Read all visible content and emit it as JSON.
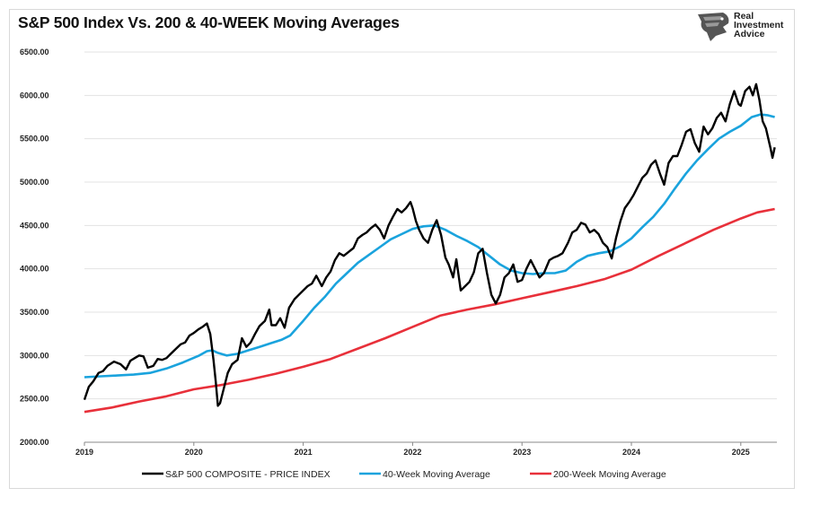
{
  "title": "S&P 500 Index Vs. 200 & 40-WEEK Moving Averages",
  "logo": {
    "line1": "Real",
    "line2": "Investment",
    "line3": "Advice",
    "icon": "eagle-head-icon"
  },
  "colors": {
    "price": "#000000",
    "ma40": "#1aa3dd",
    "ma200": "#e8303a",
    "grid": "#e3e3e3",
    "axis": "#888888"
  },
  "chart_data": {
    "type": "line",
    "title": "S&P 500 Index Vs. 200 & 40-WEEK Moving Averages",
    "xlabel": "",
    "ylabel": "",
    "ylim": [
      2000,
      6500
    ],
    "xlim": [
      2019.0,
      2025.33
    ],
    "grid": true,
    "legend_position": "bottom",
    "y_ticks": [
      "2000.00",
      "2500.00",
      "3000.00",
      "3500.00",
      "4000.00",
      "4500.00",
      "5000.00",
      "5500.00",
      "6000.00",
      "6500.00"
    ],
    "x_ticks": [
      "2019",
      "2020",
      "2021",
      "2022",
      "2023",
      "2024",
      "2025"
    ],
    "series": [
      {
        "name": "S&P 500 COMPOSITE - PRICE INDEX",
        "color": "#000000",
        "points": [
          [
            2019.0,
            2490
          ],
          [
            2019.04,
            2640
          ],
          [
            2019.08,
            2700
          ],
          [
            2019.13,
            2800
          ],
          [
            2019.17,
            2820
          ],
          [
            2019.21,
            2880
          ],
          [
            2019.27,
            2930
          ],
          [
            2019.33,
            2900
          ],
          [
            2019.38,
            2840
          ],
          [
            2019.42,
            2940
          ],
          [
            2019.46,
            2970
          ],
          [
            2019.5,
            3000
          ],
          [
            2019.54,
            2990
          ],
          [
            2019.58,
            2860
          ],
          [
            2019.63,
            2880
          ],
          [
            2019.67,
            2960
          ],
          [
            2019.71,
            2950
          ],
          [
            2019.75,
            2970
          ],
          [
            2019.79,
            3020
          ],
          [
            2019.83,
            3070
          ],
          [
            2019.88,
            3130
          ],
          [
            2019.92,
            3150
          ],
          [
            2019.96,
            3230
          ],
          [
            2020.0,
            3260
          ],
          [
            2020.04,
            3300
          ],
          [
            2020.08,
            3330
          ],
          [
            2020.12,
            3370
          ],
          [
            2020.15,
            3250
          ],
          [
            2020.18,
            2950
          ],
          [
            2020.2,
            2700
          ],
          [
            2020.22,
            2420
          ],
          [
            2020.24,
            2450
          ],
          [
            2020.27,
            2600
          ],
          [
            2020.31,
            2800
          ],
          [
            2020.35,
            2900
          ],
          [
            2020.4,
            2950
          ],
          [
            2020.44,
            3200
          ],
          [
            2020.48,
            3100
          ],
          [
            2020.52,
            3150
          ],
          [
            2020.56,
            3250
          ],
          [
            2020.6,
            3340
          ],
          [
            2020.65,
            3400
          ],
          [
            2020.69,
            3530
          ],
          [
            2020.71,
            3350
          ],
          [
            2020.75,
            3350
          ],
          [
            2020.79,
            3430
          ],
          [
            2020.83,
            3320
          ],
          [
            2020.87,
            3550
          ],
          [
            2020.92,
            3650
          ],
          [
            2020.96,
            3700
          ],
          [
            2021.0,
            3750
          ],
          [
            2021.04,
            3800
          ],
          [
            2021.08,
            3830
          ],
          [
            2021.12,
            3920
          ],
          [
            2021.17,
            3800
          ],
          [
            2021.21,
            3900
          ],
          [
            2021.25,
            3970
          ],
          [
            2021.29,
            4100
          ],
          [
            2021.33,
            4180
          ],
          [
            2021.37,
            4150
          ],
          [
            2021.42,
            4200
          ],
          [
            2021.46,
            4240
          ],
          [
            2021.5,
            4350
          ],
          [
            2021.54,
            4390
          ],
          [
            2021.58,
            4420
          ],
          [
            2021.62,
            4470
          ],
          [
            2021.66,
            4510
          ],
          [
            2021.7,
            4450
          ],
          [
            2021.74,
            4350
          ],
          [
            2021.78,
            4500
          ],
          [
            2021.82,
            4600
          ],
          [
            2021.86,
            4690
          ],
          [
            2021.9,
            4650
          ],
          [
            2021.94,
            4700
          ],
          [
            2021.98,
            4770
          ],
          [
            2022.0,
            4700
          ],
          [
            2022.03,
            4550
          ],
          [
            2022.06,
            4450
          ],
          [
            2022.1,
            4350
          ],
          [
            2022.14,
            4300
          ],
          [
            2022.18,
            4450
          ],
          [
            2022.22,
            4560
          ],
          [
            2022.26,
            4390
          ],
          [
            2022.3,
            4130
          ],
          [
            2022.33,
            4050
          ],
          [
            2022.37,
            3900
          ],
          [
            2022.4,
            4110
          ],
          [
            2022.44,
            3750
          ],
          [
            2022.48,
            3800
          ],
          [
            2022.52,
            3850
          ],
          [
            2022.56,
            3960
          ],
          [
            2022.6,
            4180
          ],
          [
            2022.64,
            4230
          ],
          [
            2022.68,
            3950
          ],
          [
            2022.72,
            3700
          ],
          [
            2022.76,
            3600
          ],
          [
            2022.8,
            3700
          ],
          [
            2022.84,
            3900
          ],
          [
            2022.88,
            3950
          ],
          [
            2022.92,
            4050
          ],
          [
            2022.96,
            3850
          ],
          [
            2023.0,
            3870
          ],
          [
            2023.04,
            4000
          ],
          [
            2023.08,
            4100
          ],
          [
            2023.12,
            4000
          ],
          [
            2023.16,
            3900
          ],
          [
            2023.2,
            3950
          ],
          [
            2023.25,
            4100
          ],
          [
            2023.29,
            4130
          ],
          [
            2023.33,
            4150
          ],
          [
            2023.37,
            4180
          ],
          [
            2023.42,
            4300
          ],
          [
            2023.46,
            4420
          ],
          [
            2023.5,
            4450
          ],
          [
            2023.54,
            4530
          ],
          [
            2023.58,
            4510
          ],
          [
            2023.62,
            4420
          ],
          [
            2023.66,
            4450
          ],
          [
            2023.7,
            4400
          ],
          [
            2023.74,
            4300
          ],
          [
            2023.78,
            4250
          ],
          [
            2023.82,
            4120
          ],
          [
            2023.86,
            4360
          ],
          [
            2023.9,
            4550
          ],
          [
            2023.94,
            4700
          ],
          [
            2023.98,
            4770
          ],
          [
            2024.02,
            4850
          ],
          [
            2024.06,
            4950
          ],
          [
            2024.1,
            5050
          ],
          [
            2024.14,
            5100
          ],
          [
            2024.18,
            5200
          ],
          [
            2024.22,
            5250
          ],
          [
            2024.26,
            5100
          ],
          [
            2024.3,
            4970
          ],
          [
            2024.34,
            5220
          ],
          [
            2024.38,
            5300
          ],
          [
            2024.42,
            5300
          ],
          [
            2024.46,
            5430
          ],
          [
            2024.5,
            5580
          ],
          [
            2024.54,
            5610
          ],
          [
            2024.58,
            5450
          ],
          [
            2024.62,
            5350
          ],
          [
            2024.66,
            5640
          ],
          [
            2024.7,
            5550
          ],
          [
            2024.74,
            5620
          ],
          [
            2024.78,
            5740
          ],
          [
            2024.82,
            5800
          ],
          [
            2024.86,
            5700
          ],
          [
            2024.9,
            5900
          ],
          [
            2024.94,
            6050
          ],
          [
            2024.98,
            5900
          ],
          [
            2025.0,
            5880
          ],
          [
            2025.04,
            6050
          ],
          [
            2025.08,
            6100
          ],
          [
            2025.11,
            6000
          ],
          [
            2025.14,
            6130
          ],
          [
            2025.17,
            5950
          ],
          [
            2025.2,
            5700
          ],
          [
            2025.23,
            5620
          ],
          [
            2025.27,
            5400
          ],
          [
            2025.29,
            5280
          ],
          [
            2025.31,
            5400
          ]
        ]
      },
      {
        "name": "40-Week Moving Average",
        "color": "#1aa3dd",
        "points": [
          [
            2019.0,
            2750
          ],
          [
            2019.15,
            2760
          ],
          [
            2019.3,
            2770
          ],
          [
            2019.45,
            2780
          ],
          [
            2019.6,
            2800
          ],
          [
            2019.75,
            2850
          ],
          [
            2019.9,
            2920
          ],
          [
            2020.05,
            3000
          ],
          [
            2020.12,
            3050
          ],
          [
            2020.17,
            3060
          ],
          [
            2020.22,
            3030
          ],
          [
            2020.3,
            3000
          ],
          [
            2020.4,
            3020
          ],
          [
            2020.5,
            3060
          ],
          [
            2020.6,
            3100
          ],
          [
            2020.7,
            3140
          ],
          [
            2020.8,
            3180
          ],
          [
            2020.88,
            3230
          ],
          [
            2021.0,
            3400
          ],
          [
            2021.1,
            3550
          ],
          [
            2021.2,
            3680
          ],
          [
            2021.3,
            3830
          ],
          [
            2021.4,
            3950
          ],
          [
            2021.5,
            4070
          ],
          [
            2021.6,
            4160
          ],
          [
            2021.7,
            4250
          ],
          [
            2021.8,
            4340
          ],
          [
            2021.9,
            4400
          ],
          [
            2022.0,
            4460
          ],
          [
            2022.1,
            4490
          ],
          [
            2022.2,
            4500
          ],
          [
            2022.3,
            4450
          ],
          [
            2022.4,
            4380
          ],
          [
            2022.5,
            4320
          ],
          [
            2022.6,
            4250
          ],
          [
            2022.7,
            4150
          ],
          [
            2022.8,
            4050
          ],
          [
            2022.9,
            3980
          ],
          [
            2023.0,
            3950
          ],
          [
            2023.1,
            3940
          ],
          [
            2023.2,
            3950
          ],
          [
            2023.3,
            3950
          ],
          [
            2023.4,
            3980
          ],
          [
            2023.5,
            4080
          ],
          [
            2023.6,
            4150
          ],
          [
            2023.7,
            4180
          ],
          [
            2023.8,
            4200
          ],
          [
            2023.9,
            4260
          ],
          [
            2024.0,
            4350
          ],
          [
            2024.1,
            4480
          ],
          [
            2024.2,
            4600
          ],
          [
            2024.3,
            4750
          ],
          [
            2024.4,
            4930
          ],
          [
            2024.5,
            5100
          ],
          [
            2024.6,
            5250
          ],
          [
            2024.7,
            5380
          ],
          [
            2024.8,
            5500
          ],
          [
            2024.9,
            5580
          ],
          [
            2025.0,
            5650
          ],
          [
            2025.1,
            5750
          ],
          [
            2025.18,
            5780
          ],
          [
            2025.25,
            5770
          ],
          [
            2025.31,
            5750
          ]
        ]
      },
      {
        "name": "200-Week Moving Average",
        "color": "#e8303a",
        "points": [
          [
            2019.0,
            2350
          ],
          [
            2019.25,
            2400
          ],
          [
            2019.5,
            2470
          ],
          [
            2019.75,
            2530
          ],
          [
            2020.0,
            2610
          ],
          [
            2020.25,
            2660
          ],
          [
            2020.5,
            2720
          ],
          [
            2020.75,
            2790
          ],
          [
            2021.0,
            2870
          ],
          [
            2021.25,
            2960
          ],
          [
            2021.5,
            3080
          ],
          [
            2021.75,
            3200
          ],
          [
            2022.0,
            3330
          ],
          [
            2022.25,
            3460
          ],
          [
            2022.5,
            3530
          ],
          [
            2022.75,
            3590
          ],
          [
            2023.0,
            3660
          ],
          [
            2023.25,
            3730
          ],
          [
            2023.5,
            3800
          ],
          [
            2023.75,
            3880
          ],
          [
            2024.0,
            3990
          ],
          [
            2024.25,
            4150
          ],
          [
            2024.5,
            4300
          ],
          [
            2024.75,
            4450
          ],
          [
            2025.0,
            4580
          ],
          [
            2025.15,
            4650
          ],
          [
            2025.31,
            4690
          ]
        ]
      }
    ]
  }
}
